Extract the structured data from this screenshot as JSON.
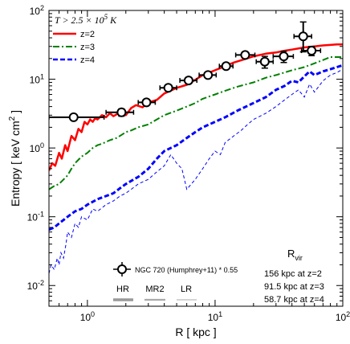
{
  "chart_data": {
    "type": "line",
    "xlabel": "R [ kpc ]",
    "ylabel": "Entropy [ keV cm",
    "ylabel_sup": "2",
    "ylabel_end": " ]",
    "xscale": "log",
    "yscale": "log",
    "xlim": [
      0.5,
      100
    ],
    "ylim": [
      0.005,
      100
    ],
    "x_ticks": [
      {
        "v": 1,
        "label": "10",
        "sup": "0"
      },
      {
        "v": 10,
        "label": "10",
        "sup": "1"
      },
      {
        "v": 100,
        "label": "10",
        "sup": "2"
      }
    ],
    "y_ticks": [
      {
        "v": 0.01,
        "label": "10",
        "sup": "-2"
      },
      {
        "v": 0.1,
        "label": "10",
        "sup": "-1"
      },
      {
        "v": 1,
        "label": "10",
        "sup": "0"
      },
      {
        "v": 10,
        "label": "10",
        "sup": "1"
      },
      {
        "v": 100,
        "label": "10",
        "sup": "2"
      }
    ],
    "annotation": "T > 2.5 × 10",
    "annotation_sup": "5",
    "annotation_unit": " K",
    "series": [
      {
        "name": "z=2",
        "color": "#ff0000",
        "style": "solid",
        "width": 2.5,
        "x": [
          0.5,
          0.53,
          0.56,
          0.6,
          0.63,
          0.67,
          0.7,
          0.75,
          0.8,
          0.85,
          0.9,
          0.95,
          1.0,
          1.05,
          1.1,
          1.15,
          1.2,
          1.3,
          1.4,
          1.5,
          1.6,
          1.8,
          2.0,
          2.2,
          2.4,
          2.7,
          3.0,
          3.5,
          4,
          5,
          6,
          7,
          8,
          9,
          10,
          12,
          14,
          17,
          20,
          25,
          30,
          35,
          40,
          50,
          60,
          70,
          80,
          90,
          100
        ],
        "y": [
          0.47,
          0.6,
          0.55,
          0.85,
          0.7,
          1.1,
          0.9,
          1.5,
          1.3,
          1.9,
          1.7,
          2.4,
          2.2,
          2.6,
          2.4,
          2.7,
          2.6,
          3.0,
          2.8,
          3.2,
          2.9,
          3.3,
          3.0,
          3.8,
          4.2,
          3.9,
          4.6,
          5.0,
          6.2,
          7.5,
          8.3,
          9.8,
          11.5,
          12.5,
          13.5,
          15.5,
          17.5,
          19.5,
          21.5,
          23.5,
          24.5,
          26,
          27,
          29,
          30,
          31,
          31.5,
          32,
          32
        ]
      },
      {
        "name": "z=3",
        "color": "#008000",
        "style": "dashdot",
        "width": 2,
        "x": [
          0.5,
          0.55,
          0.6,
          0.7,
          0.75,
          0.8,
          0.9,
          1.0,
          1.1,
          1.2,
          1.3,
          1.5,
          1.7,
          2.0,
          2.2,
          2.5,
          3.0,
          3.5,
          4,
          5,
          6,
          7,
          8,
          10,
          12,
          15,
          20,
          25,
          30,
          40,
          50,
          60,
          70,
          80,
          90,
          100
        ],
        "y": [
          0.25,
          0.28,
          0.3,
          0.4,
          0.5,
          0.6,
          0.75,
          0.85,
          1.0,
          1.1,
          1.15,
          1.3,
          1.4,
          1.7,
          1.8,
          2.0,
          2.2,
          2.6,
          3.0,
          3.5,
          4.0,
          4.5,
          5.2,
          6.0,
          6.8,
          7.8,
          9.0,
          10.5,
          11.5,
          13.5,
          15,
          17,
          19,
          21,
          21,
          21
        ]
      },
      {
        "name": "z=4",
        "color": "#0000ff",
        "style": "dashed",
        "width": 3,
        "x": [
          0.5,
          0.55,
          0.6,
          0.7,
          0.8,
          0.9,
          1.0,
          1.2,
          1.4,
          1.6,
          1.8,
          2.0,
          2.5,
          3.0,
          3.5,
          4,
          5,
          6,
          7,
          8,
          10,
          12,
          15,
          20,
          25,
          30,
          35,
          40,
          45,
          50,
          55,
          60,
          70,
          80,
          90,
          100
        ],
        "y": [
          0.065,
          0.07,
          0.08,
          0.1,
          0.12,
          0.13,
          0.15,
          0.18,
          0.2,
          0.22,
          0.26,
          0.3,
          0.38,
          0.5,
          0.7,
          0.9,
          1.1,
          1.4,
          1.7,
          2.0,
          2.4,
          2.8,
          3.5,
          4.5,
          5.5,
          7.0,
          8.0,
          9.5,
          9.0,
          11,
          13,
          11.5,
          13,
          14,
          15,
          16
        ]
      }
    ],
    "thin_series": [
      {
        "color": "#0000ff",
        "style": "dashed",
        "width": 1,
        "x": [
          0.5,
          0.52,
          0.55,
          0.58,
          0.6,
          0.62,
          0.65,
          0.68,
          0.7,
          0.75,
          0.8,
          0.85,
          0.9,
          1.0,
          1.1,
          1.2,
          1.4,
          1.6,
          1.8,
          2.0,
          2.2,
          2.5,
          3.0,
          3.5,
          4,
          4.5,
          5,
          5.5,
          6,
          7,
          8,
          9,
          10,
          11,
          12,
          14,
          16,
          18,
          20,
          25,
          30,
          35,
          40,
          45,
          50,
          55,
          60,
          70,
          80,
          90,
          100
        ],
        "y": [
          0.015,
          0.02,
          0.017,
          0.025,
          0.02,
          0.03,
          0.025,
          0.04,
          0.06,
          0.05,
          0.08,
          0.07,
          0.1,
          0.09,
          0.13,
          0.12,
          0.15,
          0.17,
          0.2,
          0.22,
          0.25,
          0.3,
          0.35,
          0.45,
          0.55,
          0.8,
          0.6,
          0.5,
          0.25,
          0.35,
          0.5,
          0.7,
          0.9,
          0.8,
          1.2,
          1.5,
          1.8,
          2.2,
          2.6,
          3.2,
          4.0,
          5.0,
          6.0,
          7.0,
          5.5,
          8.5,
          6.5,
          9.5,
          11.5,
          12.5,
          14
        ]
      }
    ],
    "observed": {
      "name": "NGC 720 (Humphrey+11) * 0.55",
      "points": [
        {
          "x": 0.78,
          "y": 2.8,
          "xlo": 0.5,
          "xhi": 1.35,
          "ylo": 2.55,
          "yhi": 3.05
        },
        {
          "x": 1.85,
          "y": 3.3,
          "xlo": 1.4,
          "xhi": 2.3,
          "ylo": 2.9,
          "yhi": 3.7
        },
        {
          "x": 2.9,
          "y": 4.6,
          "xlo": 2.5,
          "xhi": 3.4,
          "ylo": 4.2,
          "yhi": 5.0
        },
        {
          "x": 4.3,
          "y": 7.5,
          "xlo": 3.7,
          "xhi": 5.0,
          "ylo": 6.8,
          "yhi": 8.2
        },
        {
          "x": 6.2,
          "y": 9.6,
          "xlo": 5.3,
          "xhi": 7.2,
          "ylo": 8.8,
          "yhi": 10.4
        },
        {
          "x": 8.8,
          "y": 11.5,
          "xlo": 7.5,
          "xhi": 10.2,
          "ylo": 10.5,
          "yhi": 12.5
        },
        {
          "x": 12.2,
          "y": 15.5,
          "xlo": 10.8,
          "xhi": 13.8,
          "ylo": 14.3,
          "yhi": 16.8
        },
        {
          "x": 17.2,
          "y": 22.5,
          "xlo": 14.5,
          "xhi": 20.5,
          "ylo": 20.5,
          "yhi": 24.5
        },
        {
          "x": 24.5,
          "y": 18.0,
          "xlo": 21.0,
          "xhi": 28.5,
          "ylo": 14.5,
          "yhi": 21.5
        },
        {
          "x": 34.5,
          "y": 21.5,
          "xlo": 28.5,
          "xhi": 41.0,
          "ylo": 17.5,
          "yhi": 25.5
        },
        {
          "x": 49.0,
          "y": 42.0,
          "xlo": 41.5,
          "xhi": 57.0,
          "ylo": 25.0,
          "yhi": 68.0
        },
        {
          "x": 57.0,
          "y": 26.0,
          "xlo": 47.5,
          "xhi": 67.0,
          "ylo": 22.0,
          "yhi": 30.0
        }
      ]
    },
    "resolution_legend": [
      {
        "label": "HR",
        "color": "#999999",
        "width": 3.5
      },
      {
        "label": "MR2",
        "color": "#aaaaaa",
        "width": 2.2
      },
      {
        "label": "LR",
        "color": "#bbbbbb",
        "width": 1.2
      }
    ],
    "rvir": {
      "title": "R",
      "title_sub": "vir",
      "lines": [
        "156  kpc at z=2",
        "91.5 kpc at z=3",
        "58.7 kpc at z=4"
      ]
    }
  }
}
